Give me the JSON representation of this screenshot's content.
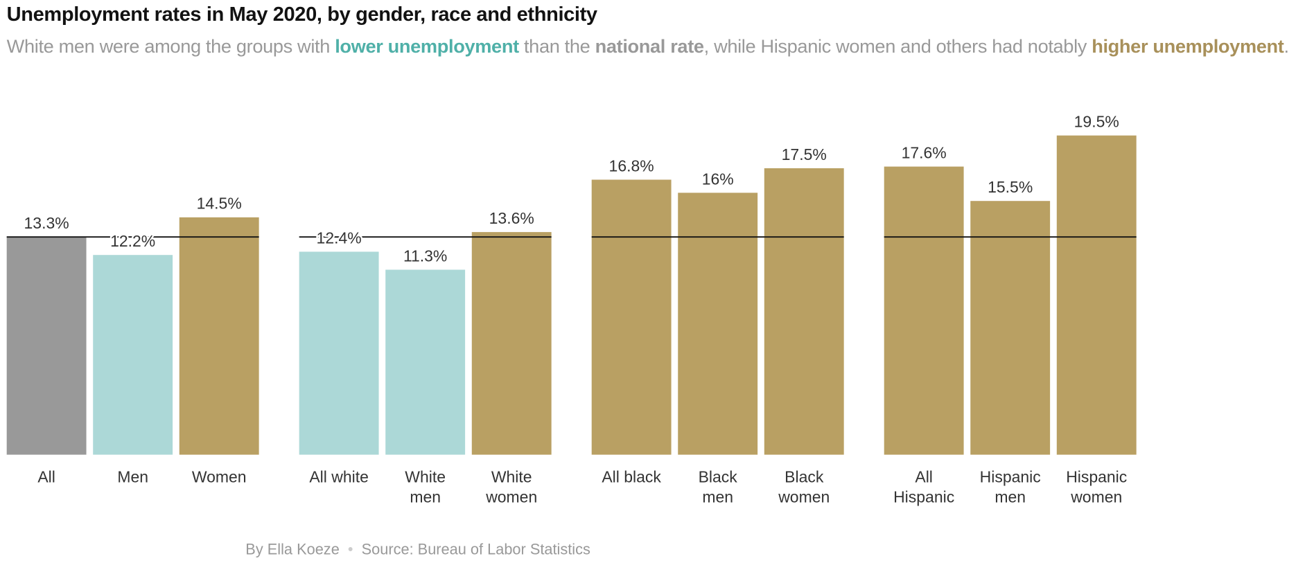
{
  "title": "Unemployment rates in May 2020, by gender, race and ethnicity",
  "subtitle": {
    "part1": "White men were among the groups with ",
    "lower": "lower unemployment",
    "part2": " than the ",
    "national": "national rate",
    "part3": ", while Hispanic women and others had notably ",
    "higher": "higher unemployment",
    "part4": "."
  },
  "footer": {
    "byline": "By Ella Koeze",
    "separator": "•",
    "source": "Source: Bureau of Labor Statistics"
  },
  "colors": {
    "national": "#999999",
    "lower": "#acd8d7",
    "higher": "#b9a063",
    "line": "#121212"
  },
  "chart_data": {
    "type": "bar",
    "title": "Unemployment rates in May 2020, by gender, race and ethnicity",
    "unit": "%",
    "reference_line": {
      "label": "national rate",
      "value": 13.3
    },
    "groups": [
      {
        "bars": [
          {
            "label": [
              "All"
            ],
            "value": 13.3,
            "value_label": "13.3%",
            "class": "national"
          },
          {
            "label": [
              "Men"
            ],
            "value": 12.2,
            "value_label": "12.2%",
            "class": "lower"
          },
          {
            "label": [
              "Women"
            ],
            "value": 14.5,
            "value_label": "14.5%",
            "class": "higher"
          }
        ]
      },
      {
        "bars": [
          {
            "label": [
              "All white"
            ],
            "value": 12.4,
            "value_label": "12.4%",
            "class": "lower"
          },
          {
            "label": [
              "White",
              "men"
            ],
            "value": 11.3,
            "value_label": "11.3%",
            "class": "lower"
          },
          {
            "label": [
              "White",
              "women"
            ],
            "value": 13.6,
            "value_label": "13.6%",
            "class": "higher"
          }
        ]
      },
      {
        "bars": [
          {
            "label": [
              "All black"
            ],
            "value": 16.8,
            "value_label": "16.8%",
            "class": "higher"
          },
          {
            "label": [
              "Black",
              "men"
            ],
            "value": 16.0,
            "value_label": "16%",
            "class": "higher"
          },
          {
            "label": [
              "Black",
              "women"
            ],
            "value": 17.5,
            "value_label": "17.5%",
            "class": "higher"
          }
        ]
      },
      {
        "bars": [
          {
            "label": [
              "All",
              "Hispanic"
            ],
            "value": 17.6,
            "value_label": "17.6%",
            "class": "higher"
          },
          {
            "label": [
              "Hispanic",
              "men"
            ],
            "value": 15.5,
            "value_label": "15.5%",
            "class": "higher"
          },
          {
            "label": [
              "Hispanic",
              "women"
            ],
            "value": 19.5,
            "value_label": "19.5%",
            "class": "higher"
          }
        ]
      }
    ]
  }
}
